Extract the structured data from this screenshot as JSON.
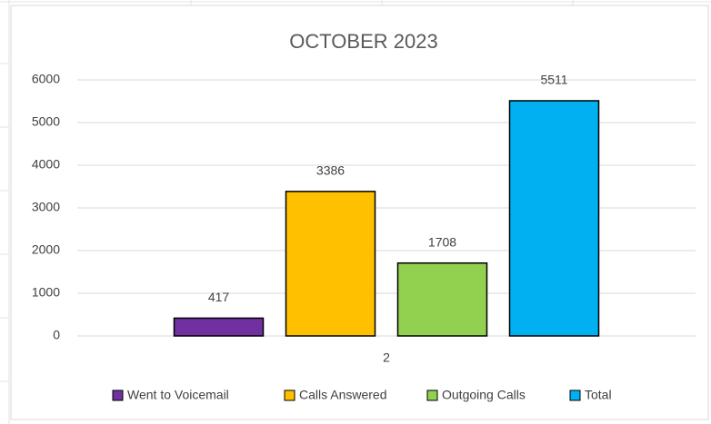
{
  "chart_data": {
    "type": "bar",
    "title": "OCTOBER 2023",
    "categories": [
      "2"
    ],
    "series": [
      {
        "name": "Went to Voicemail",
        "color": "#7030a0",
        "values": [
          417
        ]
      },
      {
        "name": "Calls Answered",
        "color": "#ffc000",
        "values": [
          3386
        ]
      },
      {
        "name": "Outgoing Calls",
        "color": "#92d050",
        "values": [
          1708
        ]
      },
      {
        "name": "Total",
        "color": "#00b0f0",
        "values": [
          5511
        ]
      }
    ],
    "ylim": [
      0,
      6000
    ],
    "yticks": [
      0,
      1000,
      2000,
      3000,
      4000,
      5000,
      6000
    ],
    "grid": true,
    "legend": "bottom"
  }
}
